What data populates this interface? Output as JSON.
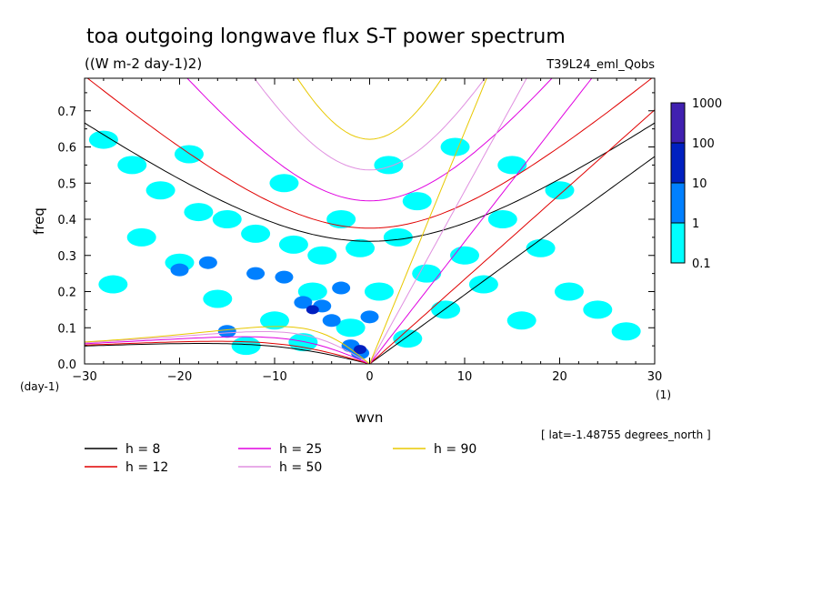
{
  "chart_data": {
    "type": "heatmap",
    "title": "toa outgoing longwave flux S-T power spectrum",
    "subtitle": "((W m-2 day-1)2)",
    "run_label": "T39L24_eml_Qobs",
    "xlabel": "wvn",
    "xunit": "(1)",
    "ylabel": "freq",
    "yunit": "(day-1)",
    "xlim": [
      -30,
      30
    ],
    "ylim": [
      0,
      0.79
    ],
    "xticks": [
      -30,
      -20,
      -10,
      0,
      10,
      20,
      30
    ],
    "yticks": [
      0.0,
      0.1,
      0.2,
      0.3,
      0.4,
      0.5,
      0.6,
      0.7
    ],
    "lat_note": "[ lat=-1.48755 degrees_north ]",
    "colorbar": {
      "levels": [
        "0.1",
        "1",
        "10",
        "100",
        "1000"
      ],
      "colors": [
        "#00ffff",
        "#0080ff",
        "#0020c0",
        "#4020b0"
      ]
    },
    "blobs": [
      {
        "x": -25,
        "y": 0.55,
        "level": 0
      },
      {
        "x": -22,
        "y": 0.48,
        "level": 0
      },
      {
        "x": -18,
        "y": 0.42,
        "level": 0
      },
      {
        "x": -15,
        "y": 0.4,
        "level": 0
      },
      {
        "x": -12,
        "y": 0.36,
        "level": 0
      },
      {
        "x": -8,
        "y": 0.33,
        "level": 0
      },
      {
        "x": -5,
        "y": 0.3,
        "level": 0
      },
      {
        "x": -3,
        "y": 0.4,
        "level": 0
      },
      {
        "x": -1,
        "y": 0.32,
        "level": 0
      },
      {
        "x": -20,
        "y": 0.28,
        "level": 0
      },
      {
        "x": -24,
        "y": 0.35,
        "level": 0
      },
      {
        "x": -27,
        "y": 0.22,
        "level": 0
      },
      {
        "x": -16,
        "y": 0.18,
        "level": 0
      },
      {
        "x": -10,
        "y": 0.12,
        "level": 0
      },
      {
        "x": -6,
        "y": 0.2,
        "level": 0
      },
      {
        "x": -2,
        "y": 0.1,
        "level": 0
      },
      {
        "x": 1,
        "y": 0.2,
        "level": 0
      },
      {
        "x": 3,
        "y": 0.35,
        "level": 0
      },
      {
        "x": 5,
        "y": 0.45,
        "level": 0
      },
      {
        "x": 6,
        "y": 0.25,
        "level": 0
      },
      {
        "x": 8,
        "y": 0.15,
        "level": 0
      },
      {
        "x": 10,
        "y": 0.3,
        "level": 0
      },
      {
        "x": 12,
        "y": 0.22,
        "level": 0
      },
      {
        "x": 14,
        "y": 0.4,
        "level": 0
      },
      {
        "x": 16,
        "y": 0.12,
        "level": 0
      },
      {
        "x": 18,
        "y": 0.32,
        "level": 0
      },
      {
        "x": 21,
        "y": 0.2,
        "level": 0
      },
      {
        "x": 24,
        "y": 0.15,
        "level": 0
      },
      {
        "x": 27,
        "y": 0.09,
        "level": 0
      },
      {
        "x": -28,
        "y": 0.62,
        "level": 0
      },
      {
        "x": -19,
        "y": 0.58,
        "level": 0
      },
      {
        "x": -9,
        "y": 0.5,
        "level": 0
      },
      {
        "x": 2,
        "y": 0.55,
        "level": 0
      },
      {
        "x": 9,
        "y": 0.6,
        "level": 0
      },
      {
        "x": 15,
        "y": 0.55,
        "level": 0
      },
      {
        "x": 20,
        "y": 0.48,
        "level": 0
      },
      {
        "x": -13,
        "y": 0.05,
        "level": 0
      },
      {
        "x": -7,
        "y": 0.06,
        "level": 0
      },
      {
        "x": 4,
        "y": 0.07,
        "level": 0
      },
      {
        "x": -17,
        "y": 0.28,
        "level": 1
      },
      {
        "x": -12,
        "y": 0.25,
        "level": 1
      },
      {
        "x": -9,
        "y": 0.24,
        "level": 1
      },
      {
        "x": -7,
        "y": 0.17,
        "level": 1
      },
      {
        "x": -5,
        "y": 0.16,
        "level": 1
      },
      {
        "x": -4,
        "y": 0.12,
        "level": 1
      },
      {
        "x": -2,
        "y": 0.05,
        "level": 1
      },
      {
        "x": -1,
        "y": 0.03,
        "level": 1
      },
      {
        "x": -15,
        "y": 0.09,
        "level": 1
      },
      {
        "x": -20,
        "y": 0.26,
        "level": 1
      },
      {
        "x": -3,
        "y": 0.21,
        "level": 1
      },
      {
        "x": 0,
        "y": 0.13,
        "level": 1
      },
      {
        "x": -6,
        "y": 0.15,
        "level": 2
      },
      {
        "x": -1,
        "y": 0.04,
        "level": 2
      }
    ],
    "series": [
      {
        "name": "h = 8",
        "h": 8,
        "color": "#000000"
      },
      {
        "name": "h = 12",
        "h": 12,
        "color": "#e00000"
      },
      {
        "name": "h = 25",
        "h": 25,
        "color": "#e000e0"
      },
      {
        "name": "h = 50",
        "h": 50,
        "color": "#e090e0"
      },
      {
        "name": "h = 90",
        "h": 90,
        "color": "#e8c800"
      }
    ]
  }
}
